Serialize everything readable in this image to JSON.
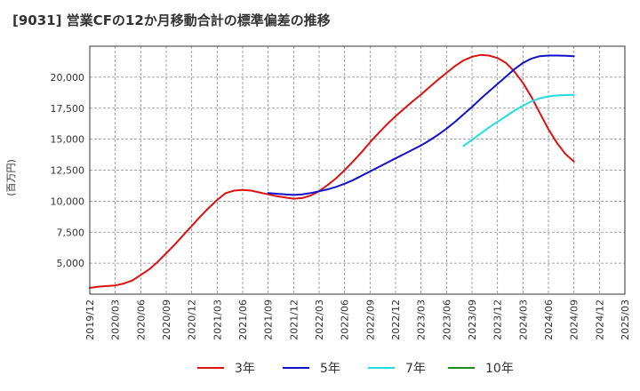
{
  "chart_data": {
    "type": "line",
    "title": "[9031]  営業CFの12か月移動合計の標準偏差の推移",
    "ylabel": "(百万円)",
    "xlabel": "",
    "x_range": [
      "2019-12",
      "2025-03"
    ],
    "ylim": [
      2500,
      22500
    ],
    "yticks": [
      5000,
      7500,
      10000,
      12500,
      15000,
      17500,
      20000
    ],
    "ytick_labels": [
      "5,000",
      "7,500",
      "10,000",
      "12,500",
      "15,000",
      "17,500",
      "20,000"
    ],
    "xtick_labels": [
      "2019/12",
      "2020/03",
      "2020/06",
      "2020/09",
      "2020/12",
      "2021/03",
      "2021/06",
      "2021/09",
      "2021/12",
      "2022/03",
      "2022/06",
      "2022/09",
      "2022/12",
      "2023/03",
      "2023/06",
      "2023/09",
      "2023/12",
      "2024/03",
      "2024/06",
      "2024/09",
      "2024/12",
      "2025/03"
    ],
    "grid": true,
    "legend_position": "bottom",
    "series": [
      {
        "name": "3年",
        "color": "#dd1111",
        "points": [
          [
            "2019-12",
            3000
          ],
          [
            "2020-01",
            3100
          ],
          [
            "2020-02",
            3150
          ],
          [
            "2020-03",
            3200
          ],
          [
            "2020-04",
            3350
          ],
          [
            "2020-05",
            3600
          ],
          [
            "2020-06",
            4050
          ],
          [
            "2020-07",
            4500
          ],
          [
            "2020-08",
            5100
          ],
          [
            "2020-09",
            5800
          ],
          [
            "2020-10",
            6500
          ],
          [
            "2020-11",
            7250
          ],
          [
            "2020-12",
            8000
          ],
          [
            "2021-01",
            8750
          ],
          [
            "2021-02",
            9450
          ],
          [
            "2021-03",
            10100
          ],
          [
            "2021-04",
            10650
          ],
          [
            "2021-05",
            10850
          ],
          [
            "2021-06",
            10900
          ],
          [
            "2021-07",
            10850
          ],
          [
            "2021-08",
            10700
          ],
          [
            "2021-09",
            10550
          ],
          [
            "2021-10",
            10400
          ],
          [
            "2021-11",
            10300
          ],
          [
            "2021-12",
            10200
          ],
          [
            "2022-01",
            10250
          ],
          [
            "2022-02",
            10450
          ],
          [
            "2022-03",
            10800
          ],
          [
            "2022-04",
            11300
          ],
          [
            "2022-05",
            11850
          ],
          [
            "2022-06",
            12500
          ],
          [
            "2022-07",
            13200
          ],
          [
            "2022-08",
            13950
          ],
          [
            "2022-09",
            14750
          ],
          [
            "2022-10",
            15500
          ],
          [
            "2022-11",
            16200
          ],
          [
            "2022-12",
            16850
          ],
          [
            "2023-01",
            17450
          ],
          [
            "2023-02",
            18050
          ],
          [
            "2023-03",
            18600
          ],
          [
            "2023-04",
            19200
          ],
          [
            "2023-05",
            19800
          ],
          [
            "2023-06",
            20350
          ],
          [
            "2023-07",
            20900
          ],
          [
            "2023-08",
            21350
          ],
          [
            "2023-09",
            21650
          ],
          [
            "2023-10",
            21800
          ],
          [
            "2023-11",
            21750
          ],
          [
            "2023-12",
            21550
          ],
          [
            "2024-01",
            21150
          ],
          [
            "2024-02",
            20450
          ],
          [
            "2024-03",
            19550
          ],
          [
            "2024-04",
            18400
          ],
          [
            "2024-05",
            17100
          ],
          [
            "2024-06",
            15800
          ],
          [
            "2024-07",
            14700
          ],
          [
            "2024-08",
            13800
          ],
          [
            "2024-09",
            13200
          ]
        ]
      },
      {
        "name": "5年",
        "color": "#1111cc",
        "points": [
          [
            "2021-09",
            10650
          ],
          [
            "2021-10",
            10600
          ],
          [
            "2021-11",
            10550
          ],
          [
            "2021-12",
            10500
          ],
          [
            "2022-01",
            10550
          ],
          [
            "2022-02",
            10650
          ],
          [
            "2022-03",
            10800
          ],
          [
            "2022-04",
            10950
          ],
          [
            "2022-05",
            11150
          ],
          [
            "2022-06",
            11400
          ],
          [
            "2022-07",
            11700
          ],
          [
            "2022-08",
            12050
          ],
          [
            "2022-09",
            12400
          ],
          [
            "2022-10",
            12750
          ],
          [
            "2022-11",
            13100
          ],
          [
            "2022-12",
            13450
          ],
          [
            "2023-01",
            13800
          ],
          [
            "2023-02",
            14150
          ],
          [
            "2023-03",
            14500
          ],
          [
            "2023-04",
            14900
          ],
          [
            "2023-05",
            15350
          ],
          [
            "2023-06",
            15850
          ],
          [
            "2023-07",
            16400
          ],
          [
            "2023-08",
            17000
          ],
          [
            "2023-09",
            17600
          ],
          [
            "2023-10",
            18250
          ],
          [
            "2023-11",
            18850
          ],
          [
            "2023-12",
            19450
          ],
          [
            "2024-01",
            20050
          ],
          [
            "2024-02",
            20650
          ],
          [
            "2024-03",
            21150
          ],
          [
            "2024-04",
            21500
          ],
          [
            "2024-05",
            21700
          ],
          [
            "2024-06",
            21750
          ],
          [
            "2024-07",
            21750
          ],
          [
            "2024-08",
            21730
          ],
          [
            "2024-09",
            21700
          ]
        ]
      },
      {
        "name": "7年",
        "color": "#22dddd",
        "points": [
          [
            "2023-08",
            14450
          ],
          [
            "2023-09",
            14950
          ],
          [
            "2023-10",
            15450
          ],
          [
            "2023-11",
            15950
          ],
          [
            "2023-12",
            16400
          ],
          [
            "2024-01",
            16850
          ],
          [
            "2024-02",
            17300
          ],
          [
            "2024-03",
            17700
          ],
          [
            "2024-04",
            18050
          ],
          [
            "2024-05",
            18300
          ],
          [
            "2024-06",
            18450
          ],
          [
            "2024-07",
            18530
          ],
          [
            "2024-08",
            18560
          ],
          [
            "2024-09",
            18570
          ]
        ]
      },
      {
        "name": "10年",
        "color": "#228822",
        "points": []
      }
    ]
  }
}
